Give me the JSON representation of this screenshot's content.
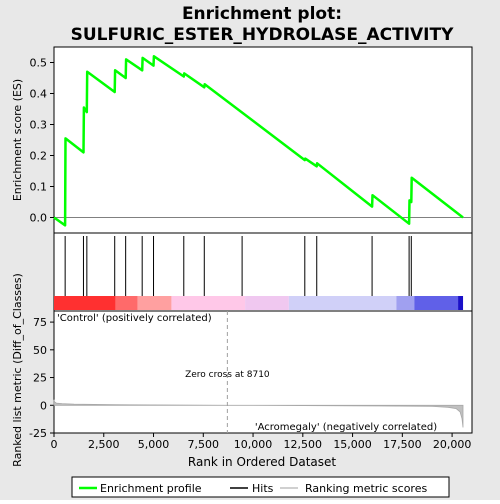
{
  "title_line1": "Enrichment plot:",
  "title_line2": "SULFURIC_ESTER_HYDROLASE_ACTIVITY",
  "chart_data": [
    {
      "type": "line",
      "panel": "enrichment-score",
      "ylabel": "Enrichment score (ES)",
      "xlim": [
        0,
        21000
      ],
      "ylim": [
        -0.05,
        0.55
      ],
      "y_ticks": [
        0.0,
        0.1,
        0.2,
        0.3,
        0.4,
        0.5
      ],
      "y_tick_labels": [
        "0.0",
        "0.1",
        "0.2",
        "0.3",
        "0.4",
        "0.5"
      ],
      "grid": false,
      "series": [
        {
          "name": "Enrichment profile",
          "color": "#00ff00",
          "x": [
            0,
            560,
            580,
            1480,
            1500,
            1650,
            1670,
            3050,
            3070,
            3600,
            3620,
            4430,
            4450,
            5000,
            5020,
            6520,
            6540,
            7550,
            7570,
            12600,
            12620,
            13200,
            13220,
            15980,
            16000,
            17840,
            17860,
            17950,
            17970,
            20550
          ],
          "y": [
            0.0,
            -0.025,
            0.255,
            0.21,
            0.355,
            0.34,
            0.47,
            0.405,
            0.475,
            0.45,
            0.51,
            0.475,
            0.515,
            0.49,
            0.52,
            0.455,
            0.465,
            0.42,
            0.43,
            0.185,
            0.19,
            0.165,
            0.175,
            0.035,
            0.072,
            -0.02,
            0.055,
            0.05,
            0.128,
            0.0
          ]
        }
      ]
    },
    {
      "type": "hits",
      "panel": "hits",
      "name": "Hits",
      "xlim": [
        0,
        21000
      ],
      "hit_positions": [
        560,
        1480,
        1650,
        3050,
        3600,
        4430,
        5000,
        6520,
        7550,
        9450,
        12600,
        13200,
        15980,
        17840,
        17950
      ],
      "gradient_colors": [
        "#ff3030",
        "#ff6a6a",
        "#ffa0a0",
        "#ffc8e8",
        "#f0c8f0",
        "#d0d0f8",
        "#a0a0f0",
        "#6060e8",
        "#1a10c8"
      ],
      "gradient_stops": [
        0,
        3100,
        4200,
        5900,
        9600,
        11800,
        17200,
        18100,
        20300,
        20550
      ]
    },
    {
      "type": "area",
      "panel": "ranking-metric",
      "ylabel": "Ranked list metric (Diff_of_Classes)",
      "xlabel": "Rank in Ordered Dataset",
      "xlim": [
        0,
        21000
      ],
      "ylim": [
        -25,
        85
      ],
      "x_ticks": [
        0,
        2500,
        5000,
        7500,
        10000,
        12500,
        15000,
        17500,
        20000
      ],
      "x_tick_labels": [
        "0",
        "2,500",
        "5,000",
        "7,500",
        "10,000",
        "12,500",
        "15,000",
        "17,500",
        "20,000"
      ],
      "y_ticks": [
        -25,
        0,
        25,
        50,
        75
      ],
      "y_tick_labels": [
        "-25",
        "0",
        "25",
        "50",
        "75"
      ],
      "series": [
        {
          "name": "Ranking metric scores",
          "color": "#c0c0c0",
          "x": [
            0,
            30,
            120,
            400,
            1000,
            3000,
            8710,
            15000,
            19000,
            19800,
            20200,
            20400,
            20500,
            20550
          ],
          "y": [
            5,
            3,
            2,
            1.5,
            1,
            0.5,
            0,
            -0.5,
            -1,
            -1.8,
            -3,
            -6,
            -12,
            -20
          ]
        }
      ],
      "annotations": {
        "positive_label": "'Control' (positively correlated)",
        "negative_label": "'Acromegaly' (negatively correlated)",
        "zero_cross_label": "Zero cross at 8710",
        "zero_cross": 8710
      }
    }
  ],
  "legend": [
    {
      "label": "Enrichment profile",
      "color": "#00ff00"
    },
    {
      "label": "Hits",
      "color": "#000000"
    },
    {
      "label": "Ranking metric scores",
      "color": "#c0c0c0"
    }
  ],
  "colors": {
    "page_background": "#e8e8e8",
    "plot_background": "#ffffff",
    "positive_label": "#cc0000",
    "negative_label": "#0000cc",
    "dashed_line": "#a0a0a0"
  }
}
